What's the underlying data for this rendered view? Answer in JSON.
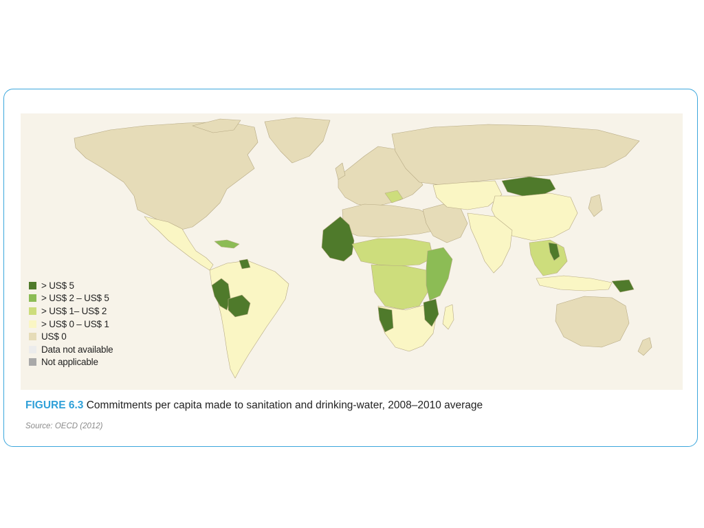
{
  "figure": {
    "label": "FIGURE 6.3",
    "caption": "Commitments per capita made to sanitation and drinking-water, 2008–2010 average",
    "source": "Source: OECD (2012)"
  },
  "legend": [
    {
      "label": "> US$ 5",
      "color": "#4f7a2b"
    },
    {
      "label": "> US$ 2 – US$ 5",
      "color": "#8cbc55"
    },
    {
      "label": "> US$ 1– US$ 2",
      "color": "#cddd7c"
    },
    {
      "label": "> US$ 0 – US$ 1",
      "color": "#faf6c4"
    },
    {
      "label": "US$ 0",
      "color": "#e6dcb8"
    },
    {
      "label": "Data not available",
      "color": "#ececec"
    },
    {
      "label": "Not applicable",
      "color": "#a9a9a9"
    }
  ],
  "colors": {
    "frame_border": "#3aa6dc",
    "figure_label": "#2fa0d8",
    "map_background": "#f7f3e9",
    "country_outline": "#b5a882"
  },
  "regions": [
    {
      "name": "north-america",
      "class": "US$ 0"
    },
    {
      "name": "greenland",
      "class": "US$ 0"
    },
    {
      "name": "mexico-central-america",
      "class": "> US$ 0 – US$ 1"
    },
    {
      "name": "caribbean",
      "class": "> US$ 2 – US$ 5"
    },
    {
      "name": "south-america",
      "class": "> US$ 0 – US$ 1"
    },
    {
      "name": "peru",
      "class": "> US$ 5"
    },
    {
      "name": "bolivia",
      "class": "> US$ 5"
    },
    {
      "name": "guyana",
      "class": "> US$ 5"
    },
    {
      "name": "europe",
      "class": "US$ 0"
    },
    {
      "name": "russia",
      "class": "US$ 0"
    },
    {
      "name": "north-africa",
      "class": "US$ 0"
    },
    {
      "name": "west-africa",
      "class": "> US$ 5"
    },
    {
      "name": "sahel",
      "class": "> US$ 1– US$ 2"
    },
    {
      "name": "central-africa",
      "class": "> US$ 1– US$ 2"
    },
    {
      "name": "east-africa",
      "class": "> US$ 2 – US$ 5"
    },
    {
      "name": "southern-africa",
      "class": "> US$ 0 – US$ 1"
    },
    {
      "name": "namibia",
      "class": "> US$ 5"
    },
    {
      "name": "mozambique",
      "class": "> US$ 5"
    },
    {
      "name": "madagascar",
      "class": "> US$ 0 – US$ 1"
    },
    {
      "name": "middle-east",
      "class": "US$ 0"
    },
    {
      "name": "central-asia",
      "class": "> US$ 0 – US$ 1"
    },
    {
      "name": "mongolia",
      "class": "> US$ 5"
    },
    {
      "name": "china",
      "class": "> US$ 0 – US$ 1"
    },
    {
      "name": "south-asia",
      "class": "> US$ 0 – US$ 1"
    },
    {
      "name": "southeast-asia",
      "class": "> US$ 1– US$ 2"
    },
    {
      "name": "vietnam",
      "class": "> US$ 5"
    },
    {
      "name": "indonesia",
      "class": "> US$ 0 – US$ 1"
    },
    {
      "name": "papua-new-guinea",
      "class": "> US$ 5"
    },
    {
      "name": "japan",
      "class": "US$ 0"
    },
    {
      "name": "australia",
      "class": "US$ 0"
    },
    {
      "name": "new-zealand",
      "class": "US$ 0"
    }
  ]
}
